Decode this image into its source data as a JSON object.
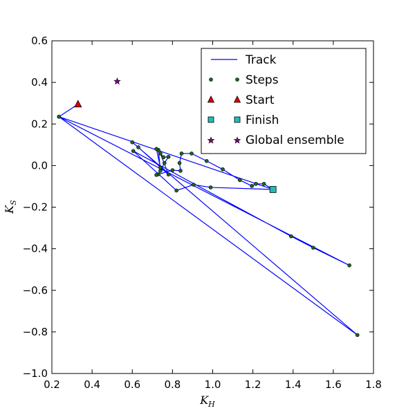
{
  "chart_data": {
    "type": "line",
    "xlabel": "K",
    "xlabel_sub": "H",
    "ylabel": "K",
    "ylabel_sub": "S",
    "xlim": [
      0.2,
      1.8
    ],
    "ylim": [
      -1.0,
      0.6
    ],
    "xticks": [
      "0.2",
      "0.4",
      "0.6",
      "0.8",
      "1.0",
      "1.2",
      "1.4",
      "1.6",
      "1.8"
    ],
    "yticks": [
      "0.6",
      "0.4",
      "0.2",
      "0.0",
      "−0.2",
      "−0.4",
      "−0.6",
      "−0.8",
      "−1.0"
    ],
    "grid": false,
    "legend_position": "top-right",
    "colors": {
      "track": "#0000ff",
      "steps": "#1a6b1a",
      "start": "#dd0000",
      "finish": "#22bbbb",
      "global": "#800080"
    },
    "series": [
      {
        "name": "Track",
        "kind": "line",
        "points": [
          [
            0.33,
            0.295
          ],
          [
            0.235,
            0.235
          ],
          [
            1.72,
            -0.815
          ],
          [
            0.6,
            0.112
          ],
          [
            0.63,
            0.088
          ],
          [
            0.78,
            -0.043
          ],
          [
            0.74,
            0.058
          ],
          [
            0.755,
            0.04
          ],
          [
            0.78,
            0.042
          ],
          [
            0.76,
            0.012
          ],
          [
            0.74,
            -0.025
          ],
          [
            0.73,
            0.075
          ],
          [
            0.72,
            0.08
          ],
          [
            0.74,
            -0.01
          ],
          [
            0.73,
            -0.042
          ],
          [
            0.72,
            -0.045
          ],
          [
            0.8,
            -0.022
          ],
          [
            0.84,
            -0.025
          ],
          [
            0.835,
            0.012
          ],
          [
            0.845,
            0.058
          ],
          [
            0.895,
            0.058
          ],
          [
            0.97,
            0.022
          ],
          [
            1.05,
            -0.018
          ],
          [
            1.135,
            -0.07
          ],
          [
            1.195,
            -0.098
          ],
          [
            1.215,
            -0.088
          ],
          [
            1.255,
            -0.088
          ],
          [
            1.3,
            -0.115
          ],
          [
            0.235,
            0.235
          ],
          [
            1.68,
            -0.48
          ],
          [
            1.5,
            -0.395
          ],
          [
            1.39,
            -0.34
          ],
          [
            0.605,
            0.07
          ],
          [
            0.82,
            -0.12
          ],
          [
            0.905,
            -0.092
          ],
          [
            0.99,
            -0.105
          ],
          [
            1.3,
            -0.115
          ]
        ]
      },
      {
        "name": "Steps",
        "kind": "points",
        "points": [
          [
            0.33,
            0.295
          ],
          [
            0.235,
            0.235
          ],
          [
            1.72,
            -0.815
          ],
          [
            0.6,
            0.112
          ],
          [
            0.63,
            0.088
          ],
          [
            0.78,
            -0.043
          ],
          [
            0.74,
            0.058
          ],
          [
            0.755,
            0.04
          ],
          [
            0.78,
            0.042
          ],
          [
            0.76,
            0.012
          ],
          [
            0.74,
            -0.025
          ],
          [
            0.73,
            0.075
          ],
          [
            0.72,
            0.08
          ],
          [
            0.74,
            -0.01
          ],
          [
            0.73,
            -0.042
          ],
          [
            0.72,
            -0.045
          ],
          [
            0.8,
            -0.022
          ],
          [
            0.84,
            -0.025
          ],
          [
            0.835,
            0.012
          ],
          [
            0.845,
            0.058
          ],
          [
            0.895,
            0.058
          ],
          [
            0.97,
            0.022
          ],
          [
            1.05,
            -0.018
          ],
          [
            1.135,
            -0.07
          ],
          [
            1.195,
            -0.098
          ],
          [
            1.215,
            -0.088
          ],
          [
            1.255,
            -0.088
          ],
          [
            1.68,
            -0.48
          ],
          [
            1.5,
            -0.395
          ],
          [
            1.39,
            -0.34
          ],
          [
            0.605,
            0.07
          ],
          [
            0.82,
            -0.12
          ],
          [
            0.905,
            -0.092
          ],
          [
            0.99,
            -0.105
          ]
        ]
      },
      {
        "name": "Start",
        "kind": "triangle",
        "points": [
          [
            0.33,
            0.295
          ]
        ]
      },
      {
        "name": "Finish",
        "kind": "square",
        "points": [
          [
            1.3,
            -0.115
          ]
        ]
      },
      {
        "name": "Global ensemble",
        "kind": "star",
        "points": [
          [
            0.525,
            0.405
          ]
        ]
      }
    ]
  }
}
